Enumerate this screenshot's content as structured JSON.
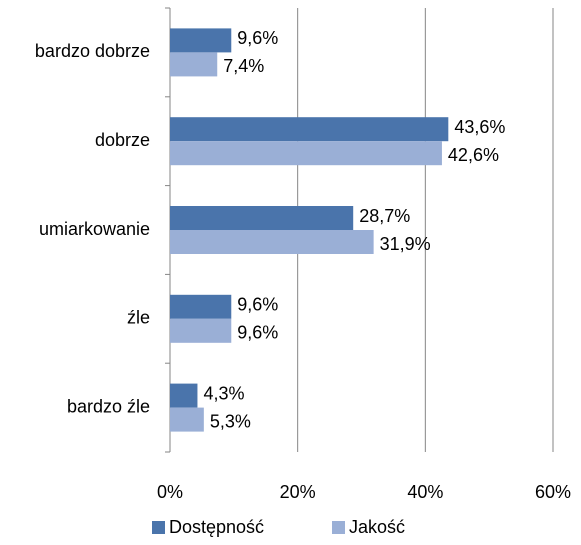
{
  "chart_data": {
    "type": "bar",
    "orientation": "horizontal",
    "categories": [
      "bardzo dobrze",
      "dobrze",
      "umiarkowanie",
      "źle",
      "bardzo źle"
    ],
    "series": [
      {
        "name": "Dostępność",
        "color": "#4a74ab",
        "values": [
          9.6,
          43.6,
          28.7,
          9.6,
          4.3
        ],
        "value_labels": [
          "9,6%",
          "43,6%",
          "28,7%",
          "9,6%",
          "4,3%"
        ]
      },
      {
        "name": "Jakość",
        "color": "#9aafd6",
        "values": [
          7.4,
          42.6,
          31.9,
          9.6,
          5.3
        ],
        "value_labels": [
          "7,4%",
          "42,6%",
          "31,9%",
          "9,6%",
          "5,3%"
        ]
      }
    ],
    "xlim": [
      0,
      60
    ],
    "xticks": [
      {
        "value": 0,
        "label": "0%"
      },
      {
        "value": 20,
        "label": "20%"
      },
      {
        "value": 40,
        "label": "40%"
      },
      {
        "value": 60,
        "label": "60%"
      }
    ],
    "grid": true,
    "legend": "bottom"
  }
}
